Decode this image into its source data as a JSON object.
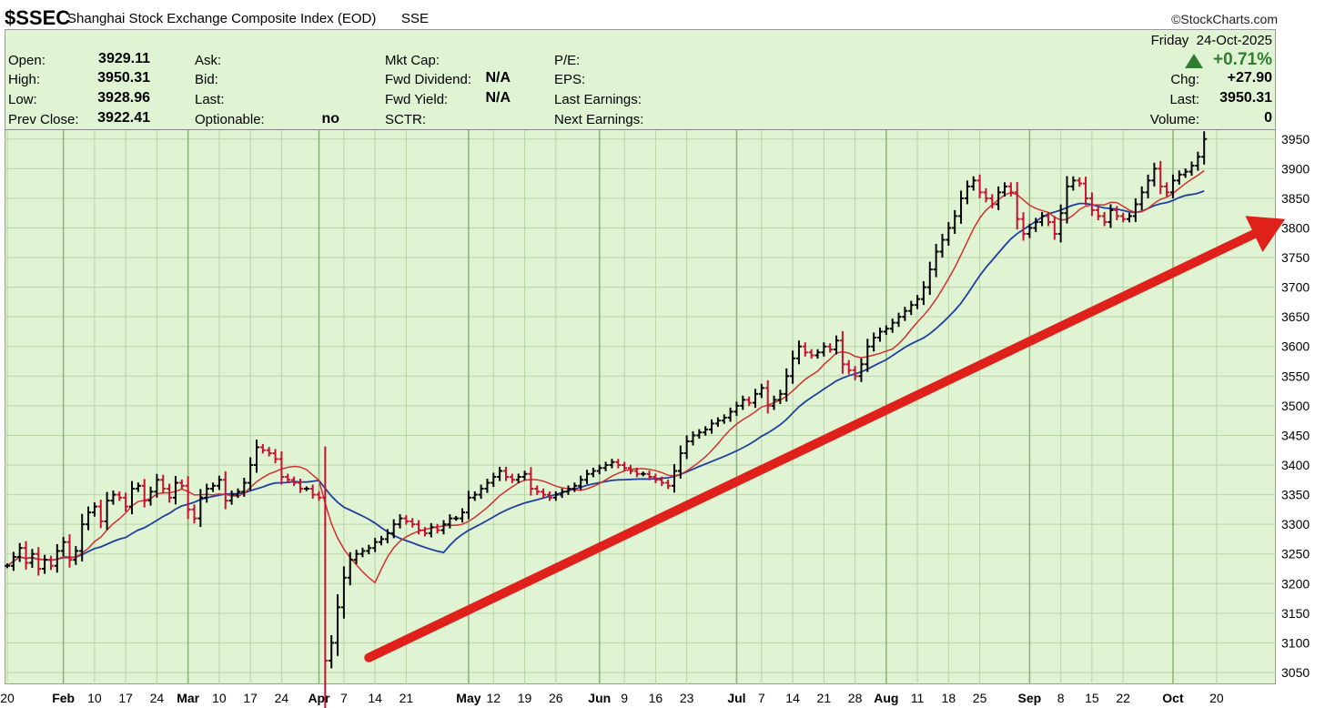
{
  "header": {
    "symbol": "$SSEC",
    "name": "Shanghai Stock Exchange Composite Index (EOD)",
    "exchange": "SSE",
    "copyright": "©StockCharts.com"
  },
  "info": {
    "open_label": "Open:",
    "open": "3929.11",
    "high_label": "High:",
    "high": "3950.31",
    "low_label": "Low:",
    "low": "3928.96",
    "prev_label": "Prev Close:",
    "prev": "3922.41",
    "ask_label": "Ask:",
    "bid_label": "Bid:",
    "last_label": "Last:",
    "optionable_label": "Optionable:",
    "optionable": "no",
    "mktcap_label": "Mkt Cap:",
    "fwd_div_label": "Fwd Dividend:",
    "fwd_div": "N/A",
    "fwd_yield_label": "Fwd Yield:",
    "fwd_yield": "N/A",
    "sctr_label": "SCTR:",
    "pe_label": "P/E:",
    "eps_label": "EPS:",
    "last_earn_label": "Last Earnings:",
    "next_earn_label": "Next Earnings:",
    "date": "Friday  24-Oct-2025",
    "pct": "+0.71%",
    "chg_label": "Chg:",
    "chg": "+27.90",
    "last2_label": "Last:",
    "last2": "3950.31",
    "volume_label": "Volume:",
    "volume": "0"
  },
  "colors": {
    "panel_bg": "#e0f4d4",
    "grid": "#b9d3a8",
    "up_bar": "#000000",
    "down_bar": "#c8102e",
    "ma_fast": "#d33030",
    "ma_slow": "#1f3fa0",
    "trend_arrow": "#e0201b",
    "up_triangle": "#2e7d32"
  },
  "chart_data": {
    "type": "line",
    "title": "$SSEC Shanghai Stock Exchange Composite Index (EOD)",
    "ylim": [
      3030,
      3965
    ],
    "yticks": [
      3050,
      3100,
      3150,
      3200,
      3250,
      3300,
      3350,
      3400,
      3450,
      3500,
      3550,
      3600,
      3650,
      3700,
      3750,
      3800,
      3850,
      3900,
      3950
    ],
    "x_tick_labels": [
      {
        "label": "20",
        "i": 0
      },
      {
        "label": "Feb",
        "i": 9,
        "month": true
      },
      {
        "label": "10",
        "i": 14
      },
      {
        "label": "17",
        "i": 19
      },
      {
        "label": "24",
        "i": 24
      },
      {
        "label": "Mar",
        "i": 29,
        "month": true
      },
      {
        "label": "10",
        "i": 34
      },
      {
        "label": "17",
        "i": 39
      },
      {
        "label": "24",
        "i": 44
      },
      {
        "label": "Apr",
        "i": 50,
        "month": true
      },
      {
        "label": "7",
        "i": 54
      },
      {
        "label": "14",
        "i": 59
      },
      {
        "label": "21",
        "i": 64
      },
      {
        "label": "May",
        "i": 74,
        "month": true
      },
      {
        "label": "12",
        "i": 78
      },
      {
        "label": "19",
        "i": 83
      },
      {
        "label": "26",
        "i": 88
      },
      {
        "label": "Jun",
        "i": 95,
        "month": true
      },
      {
        "label": "9",
        "i": 99
      },
      {
        "label": "16",
        "i": 104
      },
      {
        "label": "23",
        "i": 109
      },
      {
        "label": "Jul",
        "i": 117,
        "month": true
      },
      {
        "label": "7",
        "i": 121
      },
      {
        "label": "14",
        "i": 126
      },
      {
        "label": "21",
        "i": 131
      },
      {
        "label": "28",
        "i": 136
      },
      {
        "label": "Aug",
        "i": 141,
        "month": true
      },
      {
        "label": "11",
        "i": 146
      },
      {
        "label": "18",
        "i": 151
      },
      {
        "label": "25",
        "i": 156
      },
      {
        "label": "Sep",
        "i": 164,
        "month": true
      },
      {
        "label": "8",
        "i": 169
      },
      {
        "label": "15",
        "i": 174
      },
      {
        "label": "22",
        "i": 179
      },
      {
        "label": "Oct",
        "i": 187,
        "month": true
      },
      {
        "label": "20",
        "i": 194
      }
    ],
    "series": [
      {
        "name": "close",
        "values": [
          3230,
          3245,
          3260,
          3235,
          3250,
          3225,
          3240,
          3230,
          3255,
          3270,
          3240,
          3255,
          3300,
          3320,
          3330,
          3305,
          3340,
          3350,
          3345,
          3330,
          3360,
          3365,
          3340,
          3355,
          3375,
          3360,
          3345,
          3370,
          3365,
          3325,
          3310,
          3345,
          3360,
          3365,
          3375,
          3340,
          3350,
          3355,
          3370,
          3400,
          3430,
          3425,
          3420,
          3410,
          3380,
          3375,
          3370,
          3360,
          3360,
          3350,
          3345,
          3070,
          3100,
          3160,
          3210,
          3240,
          3250,
          3255,
          3260,
          3270,
          3275,
          3285,
          3300,
          3310,
          3305,
          3300,
          3290,
          3285,
          3295,
          3290,
          3300,
          3310,
          3310,
          3320,
          3345,
          3350,
          3360,
          3370,
          3380,
          3390,
          3380,
          3375,
          3380,
          3385,
          3360,
          3355,
          3350,
          3345,
          3350,
          3355,
          3360,
          3365,
          3375,
          3385,
          3390,
          3395,
          3400,
          3405,
          3400,
          3395,
          3390,
          3385,
          3385,
          3380,
          3375,
          3370,
          3365,
          3390,
          3420,
          3440,
          3450,
          3455,
          3460,
          3470,
          3475,
          3480,
          3490,
          3500,
          3510,
          3505,
          3520,
          3530,
          3500,
          3510,
          3520,
          3550,
          3580,
          3600,
          3590,
          3585,
          3590,
          3600,
          3595,
          3610,
          3570,
          3560,
          3550,
          3570,
          3600,
          3615,
          3625,
          3630,
          3640,
          3650,
          3660,
          3670,
          3680,
          3700,
          3730,
          3760,
          3780,
          3800,
          3820,
          3850,
          3870,
          3880,
          3860,
          3850,
          3840,
          3860,
          3870,
          3860,
          3815,
          3790,
          3800,
          3810,
          3820,
          3810,
          3790,
          3825,
          3870,
          3880,
          3875,
          3850,
          3830,
          3820,
          3810,
          3830,
          3820,
          3815,
          3820,
          3840,
          3860,
          3880,
          3900,
          3870,
          3860,
          3880,
          3890,
          3895,
          3905,
          3920,
          3950
        ]
      },
      {
        "name": "ma_fast",
        "values": "computed"
      },
      {
        "name": "ma_slow",
        "values": "computed"
      }
    ],
    "trend_arrow": {
      "from_i": 58,
      "from_y": 3075,
      "to_i": 205,
      "to_y": 3815
    }
  }
}
